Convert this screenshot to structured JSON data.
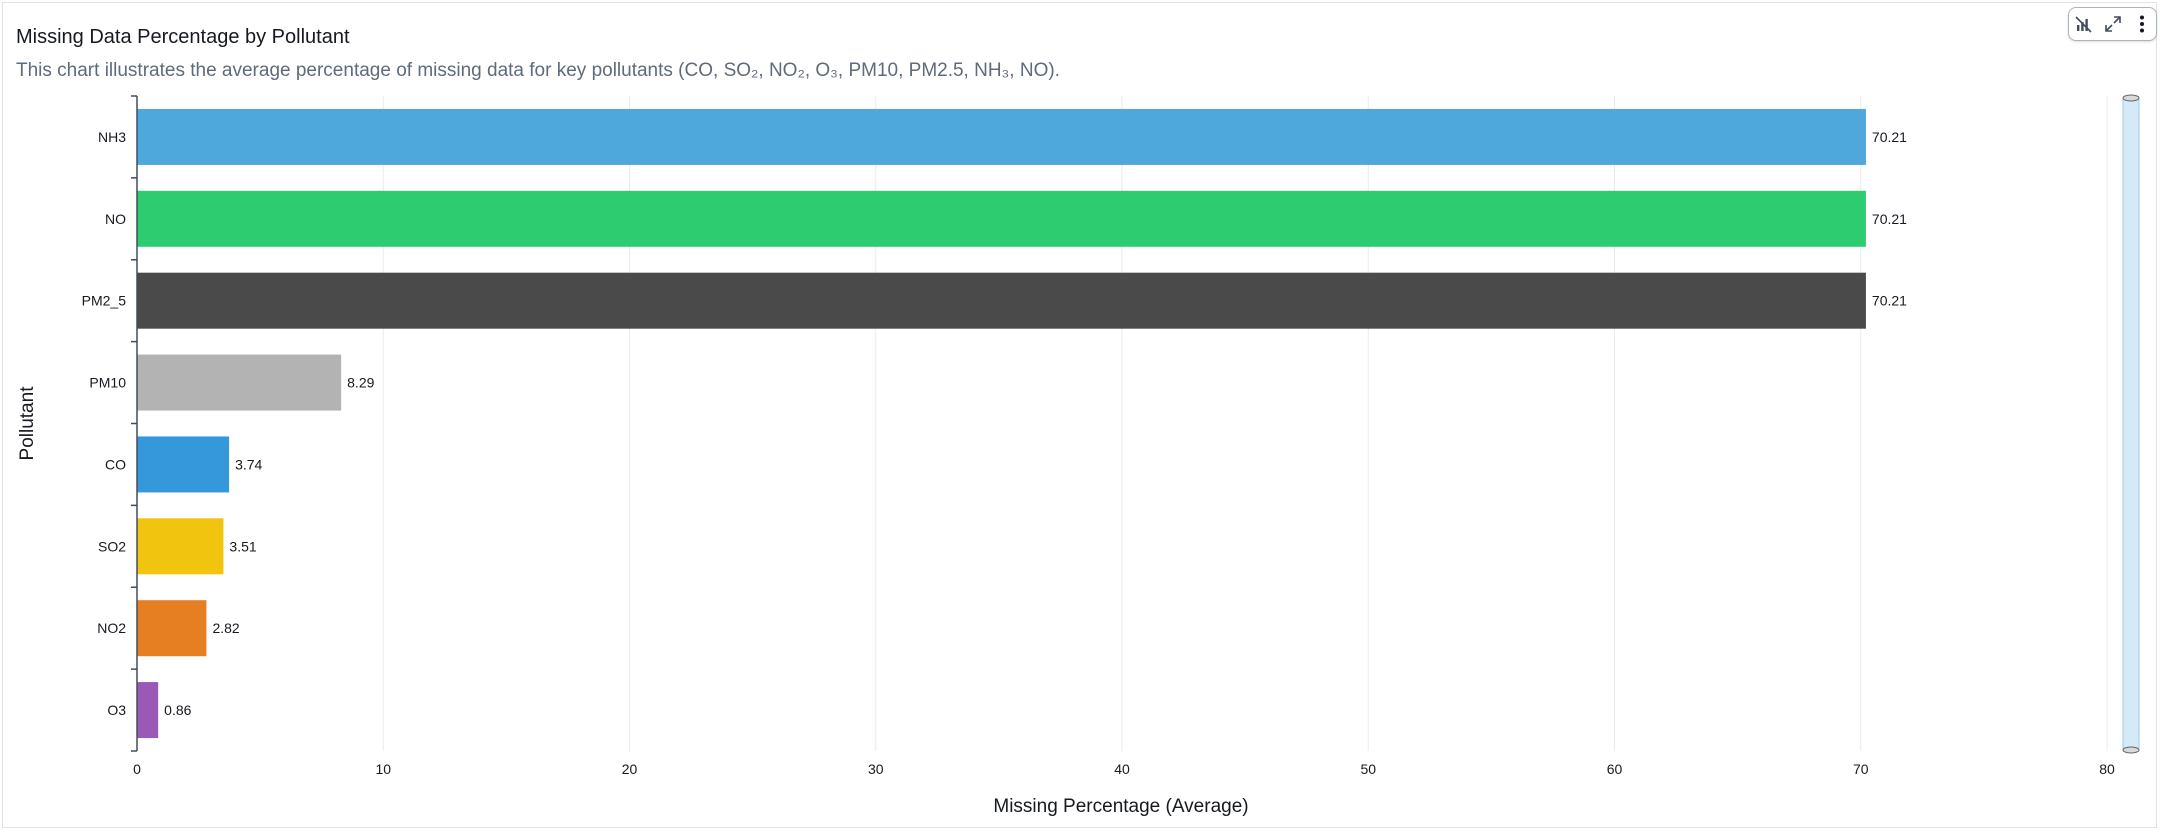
{
  "panel": {
    "title": "Missing Data Percentage by Pollutant",
    "subtitle": "This chart illustrates the average percentage of missing data for key pollutants (CO, SO₂, NO₂, O₃, PM10, PM2.5, NH₃, NO).",
    "toolbar": {
      "icons": [
        "chart-type-icon",
        "expand-icon",
        "more-options-icon"
      ]
    }
  },
  "chart_data": {
    "type": "bar",
    "orientation": "horizontal",
    "categories": [
      "NH3",
      "NO",
      "PM2_5",
      "PM10",
      "CO",
      "SO2",
      "NO2",
      "O3"
    ],
    "values": [
      70.21,
      70.21,
      70.21,
      8.29,
      3.74,
      3.51,
      2.82,
      0.86
    ],
    "value_labels": [
      "70.21",
      "70.21",
      "70.21",
      "8.29",
      "3.74",
      "3.51",
      "2.82",
      "0.86"
    ],
    "colors": [
      "#4ea8db",
      "#2ecc71",
      "#4a4a4a",
      "#b3b3b3",
      "#3498db",
      "#f1c40f",
      "#e67e22",
      "#9b59b6"
    ],
    "xlabel": "Missing Percentage (Average)",
    "ylabel": "Pollutant",
    "xlim": [
      0,
      80
    ],
    "xticks": [
      0,
      10,
      20,
      30,
      40,
      50,
      60,
      70,
      80
    ],
    "xtick_labels": [
      "0",
      "10",
      "20",
      "30",
      "40",
      "50",
      "60",
      "70",
      "80"
    ],
    "grid": "vertical",
    "legend": "none"
  }
}
